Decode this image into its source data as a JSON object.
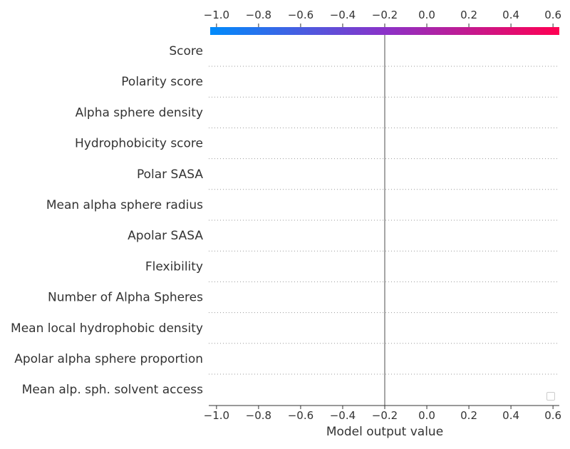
{
  "chart_data": {
    "type": "decision-plot",
    "xlabel": "Model output value",
    "xlim": [
      -1.03,
      0.63
    ],
    "xticks": [
      -1.0,
      -0.8,
      -0.6,
      -0.4,
      -0.2,
      0.0,
      0.2,
      0.4,
      0.6
    ],
    "xtick_labels": [
      "−1.0",
      "−0.8",
      "−0.6",
      "−0.4",
      "−0.2",
      "0.0",
      "0.2",
      "0.4",
      "0.6"
    ],
    "base_value": -0.2,
    "features": [
      "Score",
      "Polarity score",
      "Alpha sphere density",
      "Hydrophobicity score",
      "Polar SASA",
      "Mean alpha sphere radius",
      "Apolar SASA",
      "Flexibility",
      "Number of Alpha Spheres",
      "Mean local hydrophobic density",
      "Apolar alpha sphere proportion",
      "Mean alp. sph. solvent access"
    ],
    "colorbar": {
      "from_color": "#008bfb",
      "mid_color": "#8b32c8",
      "to_color": "#ff0052"
    },
    "grid": "dotted horizontal",
    "legend": "bottom-right (empty)"
  }
}
